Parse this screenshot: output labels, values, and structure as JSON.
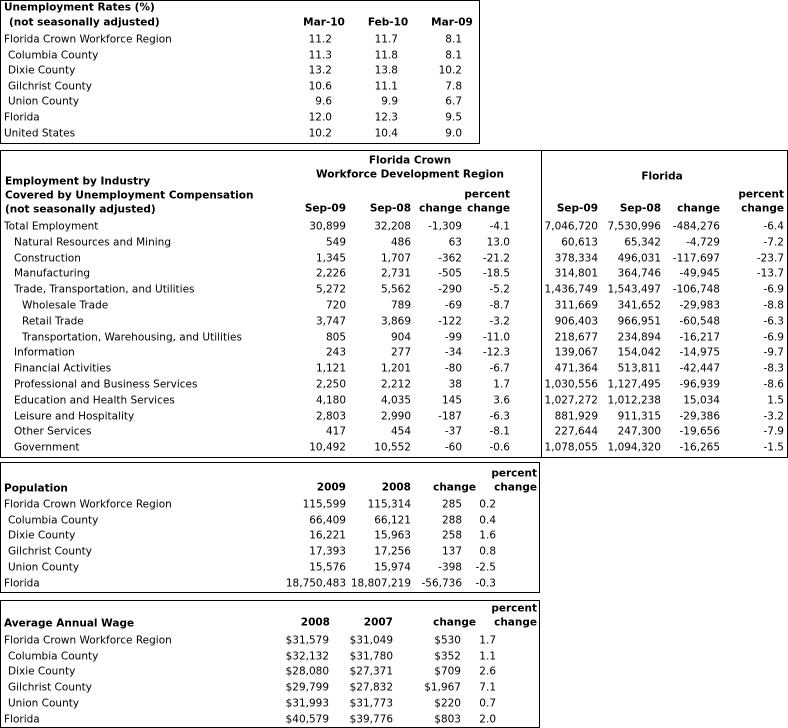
{
  "unemployment": {
    "title": "Unemployment Rates (%)",
    "subtitle": "(not seasonally adjusted)",
    "headers": [
      "Mar-10",
      "Feb-10",
      "Mar-09"
    ],
    "rows": [
      [
        "Florida Crown Workforce Region",
        "11.2",
        "11.7",
        "8.1"
      ],
      [
        "Columbia County",
        "11.3",
        "11.8",
        "8.1"
      ],
      [
        "Dixie County",
        "13.2",
        "13.8",
        "10.2"
      ],
      [
        "Gilchrist County",
        "10.6",
        "11.1",
        "7.8"
      ],
      [
        "Union County",
        "9.6",
        "9.9",
        "6.7"
      ],
      [
        "Florida",
        "12.0",
        "12.3",
        "9.5"
      ],
      [
        "United States",
        "10.2",
        "10.4",
        "9.0"
      ]
    ]
  },
  "employment": {
    "title_lines": [
      "Employment by Industry",
      "Covered by Unemployment Compensation",
      "(not seasonally adjusted)"
    ],
    "group_headers": [
      [
        "Florida Crown",
        "Workforce Development Region"
      ],
      [
        "Florida"
      ]
    ],
    "headers": [
      "Sep-09",
      "Sep-08",
      "change",
      [
        "percent",
        "change"
      ],
      "Sep-09",
      "Sep-08",
      "change",
      [
        "percent",
        "change"
      ]
    ],
    "rows": [
      [
        "Total Employment",
        "30,899",
        "32,208",
        "-1,309",
        "-4.1",
        "7,046,720",
        "7,530,996",
        "-484,276",
        "-6.4"
      ],
      [
        "Natural Resources and Mining",
        "549",
        "486",
        "63",
        "13.0",
        "60,613",
        "65,342",
        "-4,729",
        "-7.2"
      ],
      [
        "Construction",
        "1,345",
        "1,707",
        "-362",
        "-21.2",
        "378,334",
        "496,031",
        "-117,697",
        "-23.7"
      ],
      [
        "Manufacturing",
        "2,226",
        "2,731",
        "-505",
        "-18.5",
        "314,801",
        "364,746",
        "-49,945",
        "-13.7"
      ],
      [
        "Trade, Transportation, and Utilities",
        "5,272",
        "5,562",
        "-290",
        "-5.2",
        "1,436,749",
        "1,543,497",
        "-106,748",
        "-6.9"
      ],
      [
        "Wholesale Trade",
        "720",
        "789",
        "-69",
        "-8.7",
        "311,669",
        "341,652",
        "-29,983",
        "-8.8"
      ],
      [
        "Retail Trade",
        "3,747",
        "3,869",
        "-122",
        "-3.2",
        "906,403",
        "966,951",
        "-60,548",
        "-6.3"
      ],
      [
        "Transportation, Warehousing, and Utilities",
        "805",
        "904",
        "-99",
        "-11.0",
        "218,677",
        "234,894",
        "-16,217",
        "-6.9"
      ],
      [
        "Information",
        "243",
        "277",
        "-34",
        "-12.3",
        "139,067",
        "154,042",
        "-14,975",
        "-9.7"
      ],
      [
        "Financial Activities",
        "1,121",
        "1,201",
        "-80",
        "-6.7",
        "471,364",
        "513,811",
        "-42,447",
        "-8.3"
      ],
      [
        "Professional and Business Services",
        "2,250",
        "2,212",
        "38",
        "1.7",
        "1,030,556",
        "1,127,495",
        "-96,939",
        "-8.6"
      ],
      [
        "Education and Health Services",
        "4,180",
        "4,035",
        "145",
        "3.6",
        "1,027,272",
        "1,012,238",
        "15,034",
        "1.5"
      ],
      [
        "Leisure and Hospitality",
        "2,803",
        "2,990",
        "-187",
        "-6.3",
        "881,929",
        "911,315",
        "-29,386",
        "-3.2"
      ],
      [
        "Other Services",
        "417",
        "454",
        "-37",
        "-8.1",
        "227,644",
        "247,300",
        "-19,656",
        "-7.9"
      ],
      [
        "Government",
        "10,492",
        "10,552",
        "-60",
        "-0.6",
        "1,078,055",
        "1,094,320",
        "-16,265",
        "-1.5"
      ]
    ]
  },
  "population": {
    "title": "Population",
    "headers": [
      "2009",
      "2008",
      "change",
      [
        "percent",
        "change"
      ]
    ],
    "rows": [
      [
        "Florida Crown Workforce Region",
        "115,599",
        "115,314",
        "285",
        "0.2"
      ],
      [
        "Columbia County",
        "66,409",
        "66,121",
        "288",
        "0.4"
      ],
      [
        "Dixie County",
        "16,221",
        "15,963",
        "258",
        "1.6"
      ],
      [
        "Gilchrist County",
        "17,393",
        "17,256",
        "137",
        "0.8"
      ],
      [
        "Union County",
        "15,576",
        "15,974",
        "-398",
        "-2.5"
      ],
      [
        "Florida",
        "18,750,483",
        "18,807,219",
        "-56,736",
        "-0.3"
      ]
    ]
  },
  "wage": {
    "title": "Average Annual Wage",
    "headers": [
      "2008",
      "2007",
      "change",
      [
        "percent",
        "change"
      ]
    ],
    "rows": [
      [
        "Florida Crown Workforce Region",
        "$31,579",
        "$31,049",
        "$530",
        "1.7"
      ],
      [
        "Columbia County",
        "$32,132",
        "$31,780",
        "$352",
        "1.1"
      ],
      [
        "Dixie County",
        "$28,080",
        "$27,371",
        "$709",
        "2.6"
      ],
      [
        "Gilchrist County",
        "$29,799",
        "$27,832",
        "$1,967",
        "7.1"
      ],
      [
        "Union County",
        "$31,993",
        "$31,773",
        "$220",
        "0.7"
      ],
      [
        "Florida",
        "$40,579",
        "$39,776",
        "$803",
        "2.0"
      ]
    ]
  }
}
